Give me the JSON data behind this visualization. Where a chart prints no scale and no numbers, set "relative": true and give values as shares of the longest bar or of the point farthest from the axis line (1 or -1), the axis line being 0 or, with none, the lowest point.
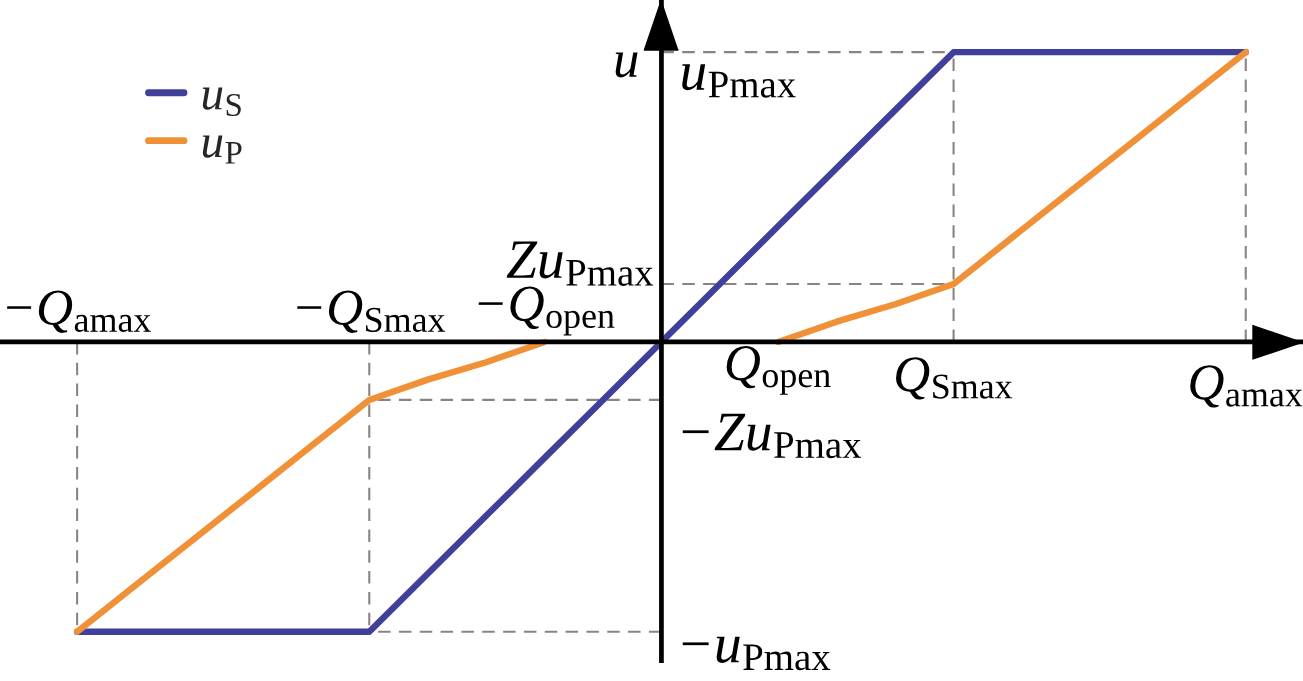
{
  "chart_data": {
    "type": "line",
    "relative": true,
    "ylabel": "u",
    "categories": [
      "−Q$_{amax}$",
      null,
      null,
      null,
      null,
      "−Q$_{Smax}$",
      null,
      null,
      "−Q$_{open}$",
      null,
      null,
      null,
      "Q$_{open}$",
      null,
      null,
      "Q$_{Smax}$",
      null,
      null,
      null,
      null,
      "Q$_{amax}$"
    ],
    "legend": "top left",
    "line_style": "solid",
    "series": [
      {
        "name": "u$_{S}$",
        "color": "#40409a",
        "values": [
          -1,
          -1,
          -1,
          -1,
          -1,
          -1,
          -0.8,
          -0.6,
          -0.4,
          -0.2,
          0,
          0.2,
          0.4,
          0.6,
          0.8,
          1,
          1,
          1,
          1,
          1,
          1
        ]
      },
      {
        "name": "u$_{P}$",
        "color": "#f09137",
        "values": [
          -1,
          -0.84,
          -0.68,
          -0.52,
          -0.36,
          -0.2,
          -0.13,
          -0.07,
          0,
          null,
          null,
          null,
          0,
          0.07,
          0.13,
          0.2,
          0.36,
          0.52,
          0.68,
          0.84,
          1
        ]
      }
    ],
    "ref_lines": [
      {
        "axis": "y",
        "value": 1,
        "label": "u$_{Pmax}$",
        "color": "#8c8282",
        "line_style": "dashed"
      },
      {
        "axis": "y",
        "value": 0.2,
        "label": "Zu$_{Pmax}$",
        "color": "#8c8282",
        "line_style": "dashed"
      },
      {
        "axis": "y",
        "value": -0.2,
        "label": "−Zu$_{Pmax}$",
        "color": "#8c8282",
        "line_style": "dashed"
      },
      {
        "axis": "y",
        "value": -1,
        "label": "−u$_{Pmax}$",
        "color": "#8c8282",
        "line_style": "dashed"
      }
    ]
  }
}
